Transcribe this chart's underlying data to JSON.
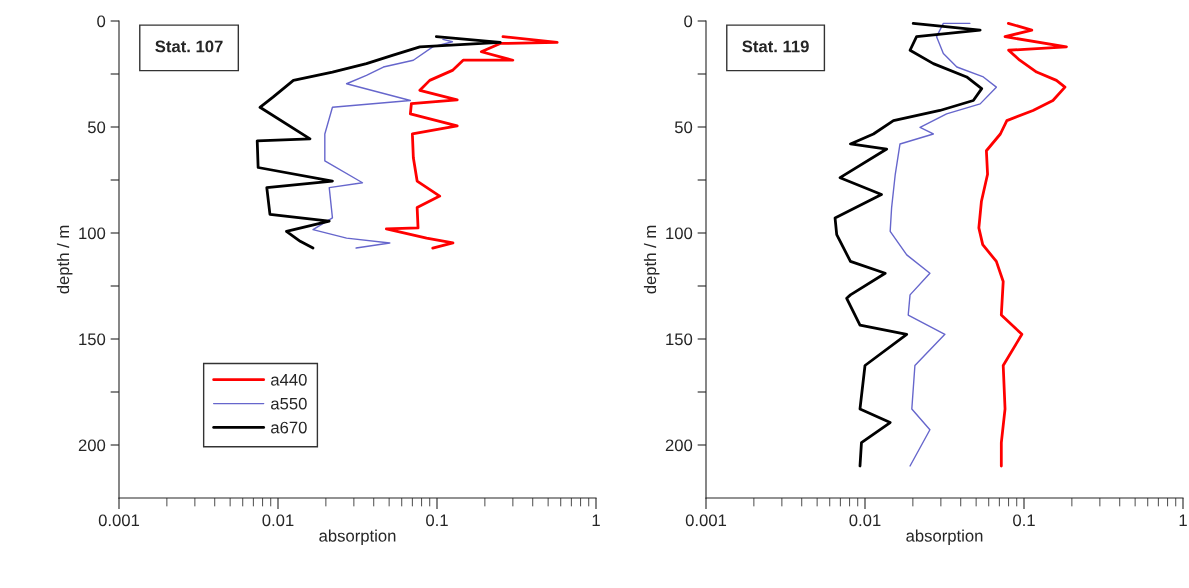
{
  "chart_data": [
    {
      "type": "line",
      "xlabel": "absorption",
      "ylabel": "depth / m",
      "log": "x",
      "legend": "bottom left",
      "grid": false,
      "annotations": [
        "Stat. 107"
      ],
      "xlim": [
        0.001,
        1
      ],
      "xticks": [
        0.001,
        0.01,
        0.1,
        1
      ],
      "ylim": [
        225,
        0
      ],
      "yticks": [
        0,
        {
          "value": 25,
          "label": null
        },
        50,
        {
          "value": 75,
          "label": null
        },
        100,
        {
          "value": 125,
          "label": null
        },
        150,
        {
          "value": 175,
          "label": null
        },
        200
      ],
      "series": [
        {
          "name": "a440",
          "color": "#ff0000",
          "x": [
            0.26,
            0.57,
            0.25,
            0.19,
            0.3,
            0.146,
            0.125,
            0.09,
            0.078,
            0.134,
            0.069,
            0.068,
            0.134,
            0.07,
            0.071,
            0.075,
            0.104,
            0.075,
            0.076,
            0.048,
            0.086,
            0.126,
            0.094
          ],
          "values": [
            7.4,
            10.1,
            10.6,
            14.5,
            18.5,
            18.5,
            23.3,
            28,
            32.7,
            37.2,
            39,
            43.8,
            49.5,
            53.2,
            64.5,
            75.5,
            82.6,
            88,
            97.6,
            98.1,
            102.4,
            104.7,
            107.1
          ]
        },
        {
          "name": "a550",
          "color": "#6666cc",
          "x": [
            0.109,
            0.125,
            0.094,
            0.071,
            0.046,
            0.036,
            0.027,
            0.068,
            0.022,
            0.0197,
            0.0197,
            0.034,
            0.021,
            0.022,
            0.0166,
            0.027,
            0.0505,
            0.031
          ],
          "values": [
            8.7,
            9.8,
            12.2,
            18.5,
            21.7,
            25.6,
            29.6,
            37.5,
            40.7,
            53.3,
            66,
            76.3,
            78.6,
            92.9,
            98.4,
            102.4,
            104.7,
            107.1
          ]
        },
        {
          "name": "a670",
          "color": "#000000",
          "x": [
            0.099,
            0.25,
            0.078,
            0.053,
            0.036,
            0.022,
            0.0125,
            0.0093,
            0.0077,
            0.0159,
            0.0074,
            0.0075,
            0.022,
            0.0085,
            0.0089,
            0.021,
            0.0113,
            0.0138,
            0.0166
          ],
          "values": [
            7.4,
            10.1,
            12.2,
            16.1,
            20.1,
            24.1,
            28,
            35.9,
            40.7,
            55.6,
            56.5,
            69.1,
            75.5,
            78.6,
            91.2,
            94.4,
            99.2,
            103.9,
            107.1
          ]
        }
      ]
    },
    {
      "type": "line",
      "xlabel": "absorption",
      "ylabel": "depth / m",
      "log": "x",
      "grid": false,
      "annotations": [
        "Stat. 119"
      ],
      "xlim": [
        0.001,
        1
      ],
      "xticks": [
        0.001,
        0.01,
        0.1,
        1
      ],
      "ylim": [
        225,
        0
      ],
      "yticks": [
        0,
        {
          "value": 25,
          "label": null
        },
        50,
        {
          "value": 75,
          "label": null
        },
        100,
        {
          "value": 125,
          "label": null
        },
        150,
        {
          "value": 175,
          "label": null
        },
        200
      ],
      "series": [
        {
          "color": "#ff0000",
          "x": [
            0.0797,
            0.112,
            0.076,
            0.185,
            0.08,
            0.094,
            0.12,
            0.16,
            0.181,
            0.152,
            0.114,
            0.078,
            0.071,
            0.058,
            0.059,
            0.054,
            0.052,
            0.055,
            0.067,
            0.074,
            0.072,
            0.097,
            0.074,
            0.076,
            0.072,
            0.072
          ],
          "values": [
            1.1,
            4.3,
            7.4,
            12.2,
            13.8,
            18.5,
            24.1,
            28,
            31.2,
            37.5,
            42.2,
            47,
            53.3,
            61.2,
            72.3,
            85,
            97.6,
            105.5,
            113.4,
            122.9,
            138.7,
            147.8,
            162.5,
            183,
            198.9,
            209.9
          ]
        },
        {
          "color": "#6666cc",
          "x": [
            0.0457,
            0.0311,
            0.0282,
            0.0311,
            0.0378,
            0.0555,
            0.067,
            0.053,
            0.0326,
            0.0222,
            0.0269,
            0.0166,
            0.0155,
            0.0147,
            0.0144,
            0.0183,
            0.0256,
            0.0192,
            0.0187,
            0.0318,
            0.0206,
            0.0197,
            0.0256,
            0.0192
          ],
          "values": [
            1.1,
            1.1,
            7.4,
            15.3,
            21.7,
            26.4,
            31.2,
            39.1,
            43.8,
            50.2,
            53.3,
            58,
            72.3,
            88.1,
            99.2,
            110.3,
            119,
            129.2,
            138.7,
            147.8,
            162.5,
            183,
            192.8,
            209.9
          ]
        },
        {
          "color": "#000000",
          "x": [
            0.0201,
            0.053,
            0.0211,
            0.0192,
            0.0269,
            0.0436,
            0.0542,
            0.048,
            0.0296,
            0.0151,
            0.0113,
            0.0081,
            0.0137,
            0.00697,
            0.0127,
            0.00648,
            0.00664,
            0.0081,
            0.0134,
            0.0081,
            0.00767,
            0.0093,
            0.0183,
            0.01,
            0.0093,
            0.0144,
            0.0095,
            0.0093
          ],
          "values": [
            1.1,
            4.3,
            7.4,
            13.8,
            20.1,
            26.4,
            31.9,
            37.5,
            42.2,
            47,
            53.3,
            58,
            60.4,
            73.9,
            81.8,
            92.9,
            100.8,
            113.4,
            119,
            129.2,
            130.8,
            143.5,
            147.8,
            162.5,
            183,
            189.4,
            198.9,
            209.9
          ]
        }
      ]
    }
  ]
}
